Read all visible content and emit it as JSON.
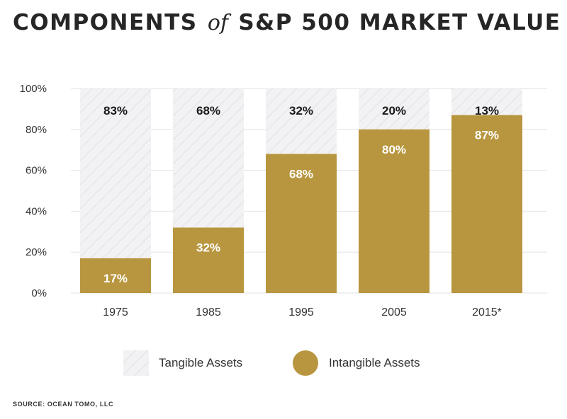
{
  "header": {
    "title_part1": "COMPONENTS",
    "title_of": "of",
    "title_part2": "S&P 500 MARKET VALUE"
  },
  "source": "SOURCE: OCEAN TOMO, LLC",
  "colors": {
    "intangible": "#b8963f",
    "tangible_bg": "#f2f2f4",
    "tangible_hatch": "#d9d9de",
    "grid": "#e2e2e2"
  },
  "chart_data": {
    "type": "bar",
    "stacked": true,
    "title": "COMPONENTS of S&P 500 MARKET VALUE",
    "categories": [
      "1975",
      "1985",
      "1995",
      "2005",
      "2015*"
    ],
    "series": [
      {
        "name": "Intangible Assets",
        "values": [
          17,
          32,
          68,
          80,
          87
        ],
        "labels": [
          "17%",
          "32%",
          "68%",
          "80%",
          "87%"
        ]
      },
      {
        "name": "Tangible Assets",
        "values": [
          83,
          68,
          32,
          20,
          13
        ],
        "labels": [
          "83%",
          "68%",
          "32%",
          "20%",
          "13%"
        ]
      }
    ],
    "yticks": [
      "0%",
      "20%",
      "40%",
      "60%",
      "80%",
      "100%"
    ],
    "ylim": [
      0,
      100
    ],
    "grid": true,
    "legend": "bottom-center"
  }
}
